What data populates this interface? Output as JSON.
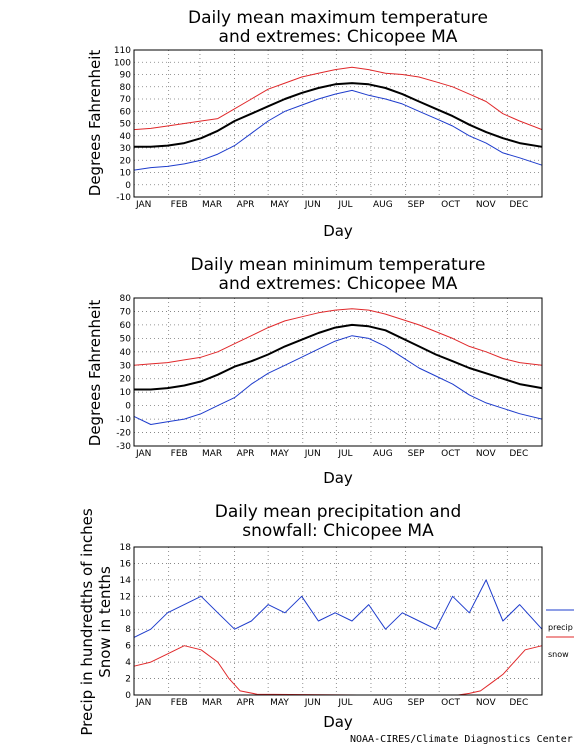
{
  "credit": "NOAA-CIRES/Climate Diagnostics Center",
  "colors": {
    "extreme_high": "#e0282a",
    "extreme_low": "#1e3ccc",
    "mean": "#000000",
    "precip": "#1e3ccc",
    "snow": "#e0282a"
  },
  "chart_data": [
    {
      "type": "line",
      "title": [
        "Daily mean maximum temperature",
        "and extremes: Chicopee MA"
      ],
      "xlabel": "Day",
      "ylabel": "Degrees Fahrenheit",
      "months": [
        "JAN",
        "FEB",
        "MAR",
        "APR",
        "MAY",
        "JUN",
        "JUL",
        "AUG",
        "SEP",
        "OCT",
        "NOV",
        "DEC"
      ],
      "ylim": [
        -10,
        110
      ],
      "yticks": [
        -10,
        0,
        10,
        20,
        30,
        40,
        50,
        60,
        70,
        80,
        90,
        100,
        110
      ],
      "ytick_labels": [
        "-10",
        "0",
        "10",
        "20",
        "30",
        "40",
        "50",
        "60",
        "70",
        "80",
        "90",
        "100",
        "110"
      ],
      "grid": true,
      "series": [
        {
          "role": "extreme_high",
          "x": [
            0,
            15,
            30,
            45,
            60,
            75,
            90,
            105,
            120,
            135,
            150,
            165,
            180,
            195,
            210,
            225,
            240,
            255,
            270,
            285,
            300,
            315,
            330,
            345,
            365
          ],
          "y": [
            45,
            46,
            48,
            50,
            52,
            54,
            62,
            70,
            78,
            83,
            88,
            91,
            94,
            96,
            94,
            91,
            90,
            88,
            84,
            80,
            74,
            68,
            58,
            52,
            45
          ]
        },
        {
          "role": "mean",
          "x": [
            0,
            15,
            30,
            45,
            60,
            75,
            90,
            105,
            120,
            135,
            150,
            165,
            180,
            195,
            210,
            225,
            240,
            255,
            270,
            285,
            300,
            315,
            330,
            345,
            365
          ],
          "y": [
            31,
            31,
            32,
            34,
            38,
            44,
            52,
            58,
            64,
            70,
            75,
            79,
            82,
            83,
            82,
            79,
            74,
            68,
            62,
            56,
            49,
            43,
            38,
            34,
            31
          ]
        },
        {
          "role": "extreme_low",
          "x": [
            0,
            15,
            30,
            45,
            60,
            75,
            90,
            105,
            120,
            135,
            150,
            165,
            180,
            195,
            210,
            225,
            240,
            255,
            270,
            285,
            300,
            315,
            330,
            345,
            365
          ],
          "y": [
            12,
            14,
            15,
            17,
            20,
            25,
            32,
            42,
            52,
            60,
            65,
            70,
            74,
            77,
            73,
            70,
            66,
            60,
            54,
            48,
            40,
            34,
            26,
            22,
            16
          ]
        }
      ]
    },
    {
      "type": "line",
      "title": [
        "Daily mean minimum temperature",
        "and extremes: Chicopee MA"
      ],
      "xlabel": "Day",
      "ylabel": "Degrees Fahrenheit",
      "months": [
        "JAN",
        "FEB",
        "MAR",
        "APR",
        "MAY",
        "JUN",
        "JUL",
        "AUG",
        "SEP",
        "OCT",
        "NOV",
        "DEC"
      ],
      "ylim": [
        -30,
        80
      ],
      "yticks": [
        -30,
        -20,
        -10,
        0,
        10,
        20,
        30,
        40,
        50,
        60,
        70,
        80
      ],
      "ytick_labels": [
        "-30",
        "-20",
        "-10",
        "0",
        "10",
        "20",
        "30",
        "40",
        "50",
        "60",
        "70",
        "80"
      ],
      "grid": true,
      "series": [
        {
          "role": "extreme_high",
          "x": [
            0,
            15,
            30,
            45,
            60,
            75,
            90,
            105,
            120,
            135,
            150,
            165,
            180,
            195,
            210,
            225,
            240,
            255,
            270,
            285,
            300,
            315,
            330,
            345,
            365
          ],
          "y": [
            30,
            31,
            32,
            34,
            36,
            40,
            46,
            52,
            58,
            63,
            66,
            69,
            71,
            72,
            71,
            68,
            64,
            60,
            55,
            50,
            44,
            40,
            35,
            32,
            30
          ]
        },
        {
          "role": "mean",
          "x": [
            0,
            15,
            30,
            45,
            60,
            75,
            90,
            105,
            120,
            135,
            150,
            165,
            180,
            195,
            210,
            225,
            240,
            255,
            270,
            285,
            300,
            315,
            330,
            345,
            365
          ],
          "y": [
            12,
            12,
            13,
            15,
            18,
            23,
            29,
            33,
            38,
            44,
            49,
            54,
            58,
            60,
            59,
            56,
            50,
            44,
            38,
            33,
            28,
            24,
            20,
            16,
            13
          ]
        },
        {
          "role": "extreme_low",
          "x": [
            0,
            15,
            30,
            45,
            60,
            75,
            90,
            105,
            120,
            135,
            150,
            165,
            180,
            195,
            210,
            225,
            240,
            255,
            270,
            285,
            300,
            315,
            330,
            345,
            365
          ],
          "y": [
            -8,
            -14,
            -12,
            -10,
            -6,
            0,
            6,
            16,
            24,
            30,
            36,
            42,
            48,
            52,
            50,
            44,
            36,
            28,
            22,
            16,
            8,
            2,
            -2,
            -6,
            -10
          ]
        }
      ]
    },
    {
      "type": "line",
      "title": [
        "Daily mean precipitation and",
        "snowfall: Chicopee MA"
      ],
      "xlabel": "Day",
      "ylabel": [
        "Precip in hundredths of inches",
        "Snow in tenths"
      ],
      "months": [
        "JAN",
        "FEB",
        "MAR",
        "APR",
        "MAY",
        "JUN",
        "JUL",
        "AUG",
        "SEP",
        "OCT",
        "NOV",
        "DEC"
      ],
      "ylim": [
        0,
        18
      ],
      "yticks": [
        0,
        2,
        4,
        6,
        8,
        10,
        12,
        14,
        16,
        18
      ],
      "ytick_labels": [
        "0",
        "2",
        "4",
        "6",
        "8",
        "10",
        "12",
        "14",
        "16",
        "18"
      ],
      "grid": true,
      "legend_position": "right",
      "series": [
        {
          "role": "precip",
          "name": "precip",
          "x": [
            0,
            15,
            30,
            45,
            60,
            75,
            90,
            105,
            120,
            135,
            150,
            165,
            180,
            195,
            210,
            225,
            240,
            255,
            270,
            285,
            300,
            315,
            330,
            345,
            365
          ],
          "y": [
            7,
            8,
            10,
            11,
            12,
            10,
            8,
            9,
            11,
            10,
            12,
            9,
            10,
            9,
            11,
            8,
            10,
            9,
            8,
            12,
            10,
            14,
            9,
            11,
            8
          ]
        },
        {
          "role": "snow",
          "name": "snow",
          "x": [
            0,
            15,
            30,
            45,
            60,
            75,
            85,
            95,
            110,
            200,
            290,
            300,
            310,
            320,
            330,
            340,
            350,
            365
          ],
          "y": [
            3.5,
            4,
            5,
            6,
            5.5,
            4,
            2,
            0.5,
            0.1,
            0,
            0,
            0.2,
            0.5,
            1.5,
            2.5,
            4,
            5.5,
            6
          ]
        }
      ]
    }
  ]
}
